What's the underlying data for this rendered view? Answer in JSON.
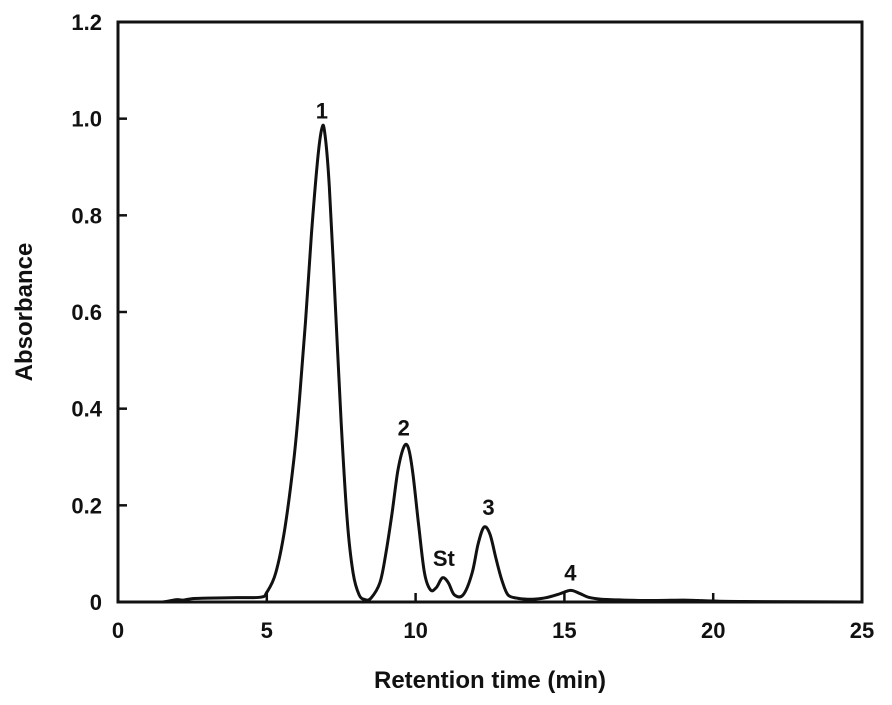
{
  "chart_data": {
    "type": "line",
    "xlabel": "Retention time (min)",
    "ylabel": "Absorbance",
    "xlim": [
      0,
      25
    ],
    "ylim": [
      0,
      1.2
    ],
    "x_ticks": [
      0,
      5,
      10,
      15,
      20,
      25
    ],
    "x_tick_labels": [
      "0",
      "5",
      "10",
      "15",
      "20",
      "25"
    ],
    "y_ticks": [
      0,
      0.2,
      0.4,
      0.6,
      0.8,
      1.0,
      1.2
    ],
    "y_tick_labels": [
      "0",
      "0.2",
      "0.4",
      "0.6",
      "0.8",
      "1.0",
      "1.2"
    ],
    "grid": false,
    "series": [
      {
        "x": [
          1.5,
          1.8,
          2.0,
          2.2,
          2.5,
          3.0,
          4.0,
          4.8,
          5.0,
          5.3,
          5.6,
          5.9,
          6.1,
          6.3,
          6.5,
          6.7,
          6.85,
          6.95,
          7.1,
          7.3,
          7.5,
          7.7,
          7.9,
          8.1,
          8.3,
          8.5,
          8.8,
          9.0,
          9.2,
          9.4,
          9.6,
          9.75,
          9.9,
          10.1,
          10.3,
          10.5,
          10.7,
          10.9,
          11.1,
          11.3,
          11.6,
          11.9,
          12.1,
          12.3,
          12.5,
          12.7,
          12.9,
          13.1,
          13.4,
          13.7,
          14.0,
          14.4,
          14.8,
          15.2,
          15.5,
          15.8,
          16.2,
          17.0,
          18.0,
          19.0,
          19.5,
          20.0,
          21.0,
          25.0
        ],
        "y": [
          0.0,
          0.003,
          0.005,
          0.004,
          0.007,
          0.008,
          0.009,
          0.01,
          0.02,
          0.06,
          0.15,
          0.29,
          0.42,
          0.58,
          0.76,
          0.91,
          0.98,
          0.97,
          0.86,
          0.62,
          0.37,
          0.17,
          0.06,
          0.015,
          0.005,
          0.008,
          0.04,
          0.1,
          0.18,
          0.27,
          0.32,
          0.32,
          0.27,
          0.16,
          0.06,
          0.025,
          0.03,
          0.05,
          0.04,
          0.015,
          0.015,
          0.06,
          0.12,
          0.155,
          0.14,
          0.09,
          0.045,
          0.015,
          0.008,
          0.006,
          0.006,
          0.009,
          0.016,
          0.024,
          0.018,
          0.01,
          0.006,
          0.004,
          0.003,
          0.004,
          0.003,
          0.002,
          0.001,
          0.0
        ]
      }
    ],
    "annotations": [
      {
        "text": "1",
        "x": 6.85,
        "y": 1.0
      },
      {
        "text": "2",
        "x": 9.6,
        "y": 0.345
      },
      {
        "text": "St",
        "x": 10.95,
        "y": 0.075
      },
      {
        "text": "3",
        "x": 12.45,
        "y": 0.18
      },
      {
        "text": "4",
        "x": 15.2,
        "y": 0.045
      }
    ]
  }
}
